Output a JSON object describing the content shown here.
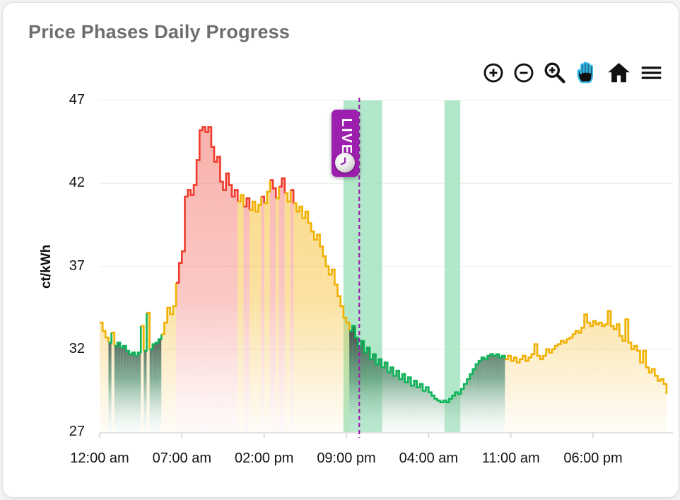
{
  "card": {
    "title": "Price Phases Daily Progress"
  },
  "toolbar": {
    "icon_color": "#111111",
    "active_color": "#2fb3e3",
    "buttons": [
      {
        "name": "zoom-in",
        "active": false
      },
      {
        "name": "zoom-out",
        "active": false
      },
      {
        "name": "box-zoom",
        "active": false
      },
      {
        "name": "pan",
        "active": true
      },
      {
        "name": "reset-home",
        "active": false
      },
      {
        "name": "menu",
        "active": false
      }
    ]
  },
  "live_marker": {
    "label": "LIVE",
    "time_hours": 22.1,
    "color": "#9c1fae",
    "line_style": "dashed"
  },
  "chart_data": {
    "type": "area",
    "title": "Price Phases Daily Progress",
    "xlabel": "",
    "ylabel": "ct/kWh",
    "ylim": [
      27,
      47
    ],
    "y_ticks": [
      47,
      42,
      37,
      32,
      27
    ],
    "x_tick_labels": [
      "12:00 am",
      "07:00 am",
      "02:00 pm",
      "09:00 pm",
      "04:00 am",
      "11:00 am",
      "06:00 pm"
    ],
    "x_tick_hours": [
      0,
      7,
      14,
      21,
      28,
      35,
      42
    ],
    "x_start_hour": 0,
    "x_end_hour": 48.25,
    "step_hours": 0.25,
    "grid": true,
    "legend": "none",
    "phase_names": {
      "n": "normal",
      "e": "expensive",
      "c": "cheap"
    },
    "phase_colors": {
      "n": "#f1b102",
      "e": "#ef3b2d",
      "c": "#0db559"
    },
    "band_color": "#9fe3bd",
    "background_bands": [
      {
        "start_hour": 20.75,
        "end_hour": 24.05
      },
      {
        "start_hour": 29.35,
        "end_hour": 30.7
      }
    ],
    "phases_groups": [
      "nnnc",
      "nccc",
      "cccc",
      "ccnc",
      "nccc",
      "cnnn",
      "nnee",
      "eeee",
      "eeee",
      "eeee",
      "eeee",
      "eeen",
      "neen",
      "nnne",
      "nnee",
      "neen",
      "nenn",
      "nnnn",
      "nnnn",
      "nnnn",
      "nnnn",
      "nccc",
      "cccc",
      "cccc",
      "cccc",
      "cccc",
      "cccc",
      "cccc",
      "cccc",
      "cccc",
      "cccc",
      "cccc",
      "cccc",
      "cccc",
      "ccnn",
      "nnnn",
      "nnnn",
      "nnnn",
      "nnnn",
      "nnnn",
      "nnnn",
      "nnnn",
      "nnnn",
      "nnnn",
      "nnnn",
      "nnnn",
      "nnnn",
      "nnnn",
      "nn"
    ],
    "values": [
      33.6,
      33.1,
      32.7,
      32.4,
      33.0,
      32.2,
      32.4,
      32.1,
      32.2,
      31.9,
      31.7,
      31.8,
      31.6,
      31.8,
      33.4,
      31.9,
      34.2,
      32.0,
      32.3,
      32.4,
      32.6,
      32.9,
      33.6,
      34.5,
      34.1,
      34.6,
      36.0,
      37.2,
      37.9,
      41.2,
      41.6,
      41.3,
      41.9,
      43.4,
      45.2,
      45.4,
      45.1,
      45.4,
      44.2,
      43.3,
      43.6,
      42.1,
      41.6,
      42.6,
      41.9,
      41.2,
      41.6,
      40.9,
      41.3,
      40.6,
      41.1,
      40.4,
      40.9,
      40.3,
      40.7,
      41.2,
      40.8,
      41.5,
      42.2,
      41.7,
      41.1,
      41.8,
      42.3,
      41.4,
      40.9,
      41.6,
      40.8,
      40.3,
      40.6,
      39.9,
      40.3,
      39.6,
      39.1,
      38.6,
      38.9,
      38.2,
      37.6,
      37.0,
      36.5,
      36.8,
      35.9,
      35.2,
      34.6,
      33.9,
      33.6,
      33.1,
      33.4,
      32.7,
      32.1,
      32.5,
      31.8,
      32.1,
      31.4,
      31.7,
      31.1,
      31.4,
      30.9,
      31.2,
      30.6,
      30.9,
      30.4,
      30.7,
      30.2,
      30.5,
      30.0,
      30.3,
      29.8,
      30.1,
      29.7,
      29.9,
      29.5,
      29.7,
      29.4,
      29.2,
      29.0,
      28.9,
      28.8,
      28.9,
      28.8,
      29.0,
      29.2,
      29.4,
      29.3,
      29.6,
      29.9,
      30.2,
      30.5,
      30.8,
      31.1,
      31.3,
      31.5,
      31.4,
      31.6,
      31.7,
      31.6,
      31.7,
      31.5,
      31.6,
      31.4,
      31.6,
      31.3,
      31.5,
      31.2,
      31.4,
      31.6,
      31.3,
      31.5,
      31.7,
      32.3,
      31.6,
      31.4,
      31.6,
      32.0,
      31.8,
      32.0,
      32.2,
      32.3,
      32.5,
      32.4,
      32.6,
      32.7,
      32.9,
      33.1,
      33.0,
      33.3,
      34.1,
      33.6,
      33.4,
      33.7,
      33.5,
      33.6,
      33.4,
      33.5,
      34.3,
      33.4,
      33.2,
      33.5,
      32.8,
      32.5,
      33.8,
      32.4,
      32.0,
      32.2,
      31.9,
      31.2,
      31.9,
      30.9,
      30.6,
      30.8,
      30.4,
      30.1,
      30.2,
      29.9,
      29.3
    ]
  }
}
